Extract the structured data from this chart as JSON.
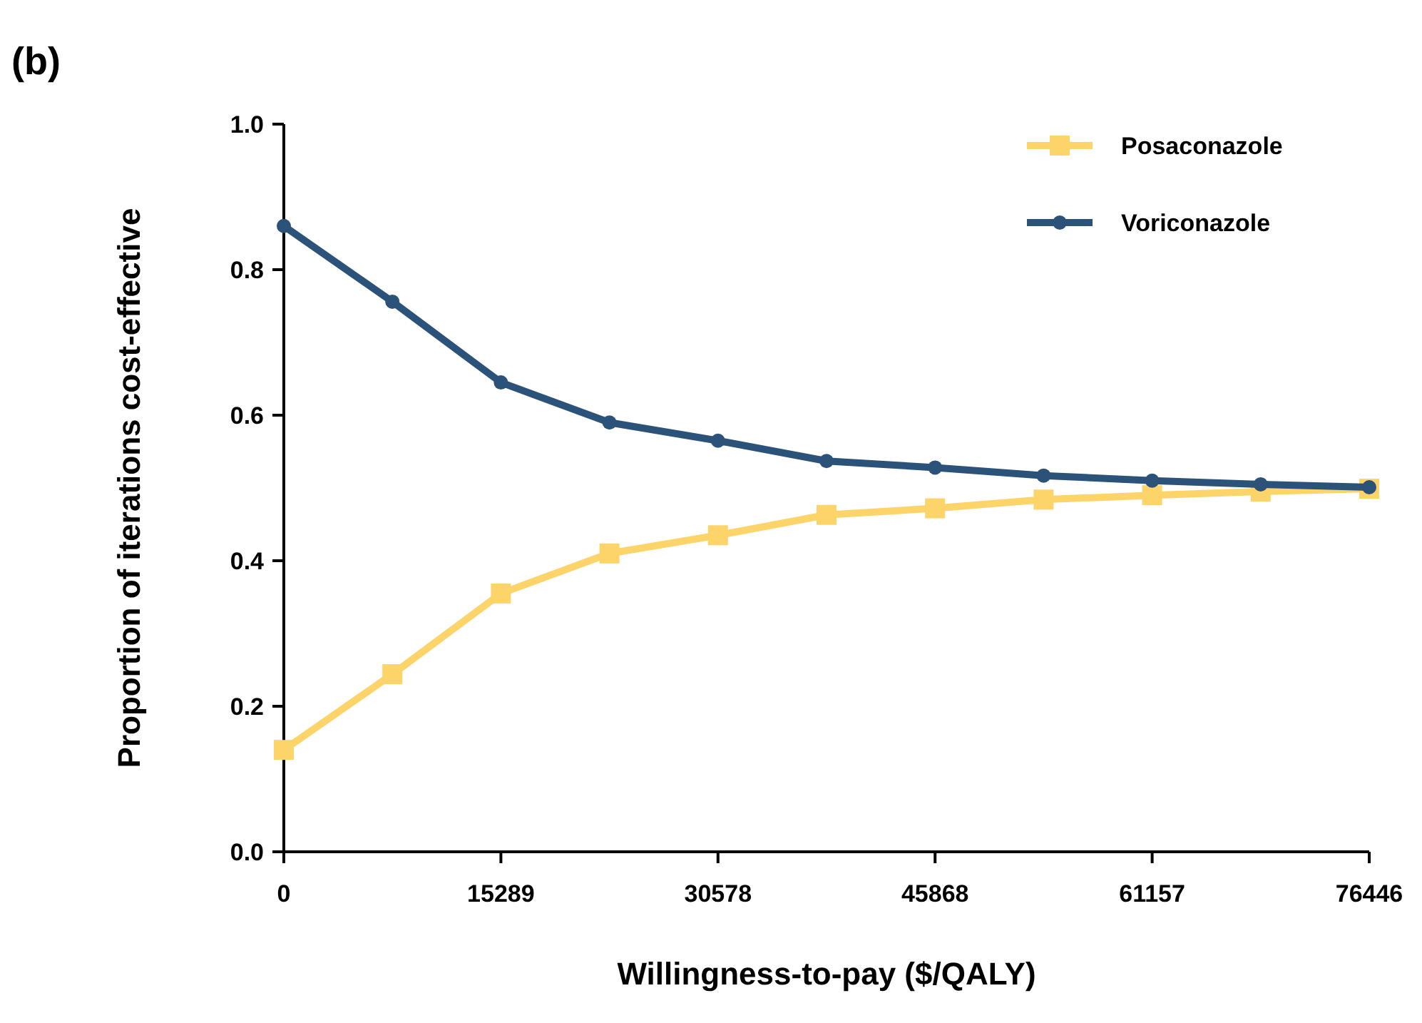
{
  "chart_data": {
    "type": "line",
    "xlabel": "Willingness-to-pay ($/QALY)",
    "ylabel": "Proportion of iterations cost-effective",
    "annotations": [
      "(b)"
    ],
    "x": [
      0,
      7645,
      15289,
      22934,
      30578,
      38223,
      45868,
      53512,
      61157,
      68801,
      76446
    ],
    "series": [
      {
        "name": "Posaconazole",
        "color": "#fdd46a",
        "marker": "square",
        "values": [
          0.14,
          0.244,
          0.355,
          0.41,
          0.435,
          0.463,
          0.472,
          0.484,
          0.49,
          0.495,
          0.499
        ]
      },
      {
        "name": "Voriconazole",
        "color": "#2b5279",
        "marker": "circle",
        "values": [
          0.86,
          0.756,
          0.645,
          0.59,
          0.565,
          0.537,
          0.528,
          0.517,
          0.51,
          0.505,
          0.501
        ]
      }
    ],
    "xlim": [
      0,
      76446
    ],
    "xticks": [
      0,
      15289,
      30578,
      45868,
      61157,
      76446
    ],
    "ylim": [
      0,
      1
    ],
    "yticks": [
      {
        "value": 0,
        "label": "0.0"
      },
      {
        "value": 0.2,
        "label": "0.2"
      },
      {
        "value": 0.4,
        "label": "0.4"
      },
      {
        "value": 0.6,
        "label": "0.6"
      },
      {
        "value": 0.8,
        "label": "0.8"
      },
      {
        "value": 1,
        "label": "1.0"
      }
    ],
    "grid": false,
    "legend": "top right",
    "line_style": "solid"
  }
}
